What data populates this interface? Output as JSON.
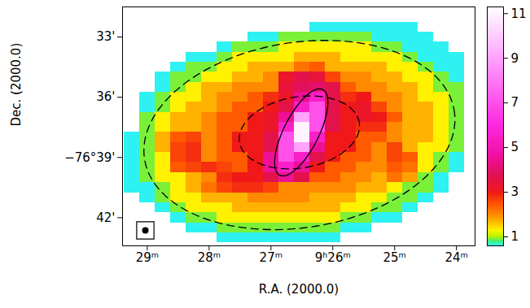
{
  "chart_data": {
    "type": "heatmap",
    "xlabel": "R.A. (2000.0)",
    "ylabel": "Dec. (2000.0)",
    "xlim": [
      29.4,
      23.7
    ],
    "ylim": [
      43.4,
      31.5
    ],
    "xticks": [
      {
        "value": 29,
        "label": "29ᵐ"
      },
      {
        "value": 28,
        "label": "28ᵐ"
      },
      {
        "value": 27,
        "label": "27ᵐ"
      },
      {
        "value": 26,
        "label": "9ʰ26ᵐ"
      },
      {
        "value": 25,
        "label": "25ᵐ"
      },
      {
        "value": 24,
        "label": "24ᵐ"
      }
    ],
    "yticks": [
      {
        "value": 33,
        "label": "33'"
      },
      {
        "value": 36,
        "label": "36'"
      },
      {
        "value": 39,
        "label": "−76°39'"
      },
      {
        "value": 42,
        "label": "42'"
      }
    ],
    "x": [
      29.25,
      29.0,
      28.75,
      28.5,
      28.25,
      28.0,
      27.75,
      27.5,
      27.25,
      27.0,
      26.75,
      26.5,
      26.25,
      26.0,
      25.75,
      25.5,
      25.25,
      25.0,
      24.75,
      24.5,
      24.25,
      24.0
    ],
    "y": [
      32.5,
      33,
      33.5,
      34,
      34.5,
      35,
      35.5,
      36,
      36.5,
      37,
      37.5,
      38,
      38.5,
      39,
      39.5,
      40,
      40.5,
      41,
      41.5,
      42,
      42.5,
      43
    ],
    "values": [
      [
        null,
        null,
        null,
        null,
        null,
        null,
        null,
        null,
        null,
        null,
        null,
        null,
        0.6,
        0.6,
        0.6,
        0.6,
        0.6,
        0.6,
        0.6,
        null,
        null,
        null
      ],
      [
        null,
        null,
        null,
        null,
        null,
        null,
        null,
        null,
        0.6,
        0.6,
        0.9,
        0.9,
        0.9,
        0.9,
        0.9,
        0.9,
        0.6,
        0.6,
        0.6,
        0.6,
        null,
        null
      ],
      [
        null,
        null,
        null,
        null,
        null,
        null,
        0.6,
        0.9,
        0.9,
        0.9,
        1.3,
        1.3,
        1.3,
        1.3,
        1.3,
        1.3,
        0.9,
        0.9,
        0.6,
        0.6,
        0.6,
        null
      ],
      [
        null,
        null,
        null,
        null,
        0.6,
        0.6,
        0.9,
        1.3,
        1.3,
        1.3,
        1.3,
        1.7,
        1.7,
        1.7,
        1.3,
        1.3,
        1.3,
        1.3,
        0.9,
        0.6,
        0.6,
        0.6
      ],
      [
        null,
        null,
        null,
        0.6,
        0.9,
        0.9,
        1.3,
        1.3,
        1.7,
        1.7,
        1.7,
        2.2,
        2.4,
        1.7,
        1.7,
        1.7,
        1.7,
        1.3,
        1.3,
        0.9,
        0.6,
        0.6
      ],
      [
        null,
        null,
        0.6,
        0.9,
        0.9,
        1.3,
        1.3,
        1.7,
        1.7,
        2.0,
        3.2,
        3.6,
        3.4,
        2.6,
        2.0,
        2.0,
        1.7,
        1.7,
        1.3,
        1.3,
        0.9,
        0.6
      ],
      [
        null,
        null,
        0.6,
        0.9,
        1.3,
        1.7,
        1.7,
        2.0,
        2.0,
        2.0,
        3.4,
        3.8,
        4.0,
        3.6,
        2.4,
        2.0,
        2.0,
        1.7,
        1.7,
        1.3,
        0.9,
        0.9
      ],
      [
        null,
        0.6,
        0.9,
        1.3,
        1.3,
        1.7,
        2.0,
        2.0,
        2.4,
        2.8,
        3.2,
        4.5,
        5.5,
        3.6,
        2.8,
        3.0,
        2.0,
        2.0,
        1.7,
        1.3,
        1.3,
        0.9
      ],
      [
        null,
        0.6,
        0.9,
        1.3,
        1.7,
        1.7,
        2.0,
        2.4,
        2.4,
        3.0,
        3.6,
        5.5,
        7,
        3.6,
        3.0,
        3.2,
        2.6,
        2.0,
        1.7,
        1.7,
        1.3,
        0.9
      ],
      [
        null,
        0.9,
        1.3,
        1.7,
        1.7,
        2.0,
        2.4,
        2.4,
        3.0,
        3.2,
        4.5,
        9,
        7,
        3.6,
        3.0,
        3.2,
        3.0,
        2.4,
        1.7,
        1.7,
        1.3,
        0.9
      ],
      [
        null,
        0.9,
        1.3,
        1.7,
        1.7,
        2.0,
        2.4,
        2.4,
        3.0,
        3.2,
        5.5,
        11,
        7,
        3.6,
        3.0,
        2.8,
        2.8,
        2.0,
        1.7,
        1.7,
        1.3,
        0.9
      ],
      [
        0.6,
        0.9,
        1.7,
        2.4,
        2.6,
        2.0,
        2.4,
        3.0,
        3.0,
        3.6,
        7,
        11,
        5.5,
        3.0,
        3.0,
        2.4,
        2.4,
        2.0,
        1.7,
        1.7,
        1.3,
        0.9
      ],
      [
        0.6,
        0.9,
        1.7,
        2.6,
        2.8,
        2.0,
        2.4,
        3.0,
        3.0,
        3.6,
        7,
        9,
        4.5,
        3.0,
        3.0,
        2.4,
        2.0,
        2.6,
        1.7,
        1.3,
        1.3,
        0.9
      ],
      [
        0.6,
        0.9,
        1.3,
        2.6,
        2.8,
        2.0,
        2.4,
        2.4,
        3.0,
        4.5,
        7,
        5.5,
        3.6,
        3.0,
        2.4,
        2.4,
        2.0,
        2.6,
        2.4,
        1.3,
        0.9,
        0.6
      ],
      [
        0.6,
        0.9,
        1.3,
        2.4,
        2.6,
        2.8,
        2.6,
        2.4,
        3.0,
        4.5,
        5.5,
        4.5,
        3.0,
        2.4,
        2.4,
        2.0,
        2.0,
        2.4,
        2.2,
        1.3,
        0.9,
        0.6
      ],
      [
        0.6,
        0.9,
        1.3,
        1.3,
        1.7,
        2.0,
        2.8,
        3.0,
        3.0,
        3.6,
        4.5,
        3.6,
        2.4,
        2.4,
        2.0,
        2.0,
        1.7,
        2.2,
        1.8,
        0.9,
        0.6,
        null
      ],
      [
        0.6,
        0.6,
        0.9,
        1.3,
        1.7,
        2.2,
        2.6,
        2.8,
        2.8,
        2.6,
        2.0,
        2.0,
        2.0,
        2.0,
        2.0,
        1.7,
        1.7,
        1.3,
        0.9,
        0.9,
        0.6,
        null
      ],
      [
        null,
        0.6,
        0.9,
        1.3,
        1.3,
        1.7,
        1.7,
        1.7,
        2.0,
        2.0,
        2.0,
        2.0,
        1.7,
        1.7,
        1.7,
        1.3,
        1.3,
        0.9,
        0.9,
        0.6,
        null,
        null
      ],
      [
        null,
        null,
        0.6,
        0.9,
        1.3,
        1.3,
        1.3,
        1.7,
        1.7,
        1.7,
        1.7,
        1.7,
        1.7,
        1.7,
        1.3,
        1.3,
        0.9,
        0.9,
        0.6,
        null,
        null,
        null
      ],
      [
        null,
        null,
        null,
        0.6,
        0.9,
        0.9,
        1.3,
        1.3,
        1.3,
        1.3,
        1.3,
        1.3,
        1.3,
        1.3,
        0.9,
        0.9,
        0.6,
        0.6,
        null,
        null,
        null,
        null
      ],
      [
        null,
        null,
        null,
        null,
        0.6,
        0.6,
        0.9,
        0.9,
        0.9,
        0.9,
        0.9,
        0.9,
        0.9,
        0.9,
        0.6,
        0.6,
        null,
        null,
        null,
        null,
        null,
        null
      ],
      [
        null,
        null,
        null,
        null,
        null,
        null,
        0.6,
        0.6,
        0.6,
        0.6,
        0.6,
        0.6,
        0.6,
        0.6,
        null,
        null,
        null,
        null,
        null,
        null,
        null,
        null
      ]
    ],
    "colorbar": {
      "range": [
        0.6,
        11.3
      ],
      "ticks": [
        1,
        3,
        5,
        7,
        9,
        11
      ]
    },
    "ellipses": [
      {
        "center": [
          26.54,
          37.88
        ],
        "major_end": [
          24.03,
          36.81
        ],
        "minor_end": [
          26.7,
          33.29
        ],
        "line_style": "dashed"
      },
      {
        "center": [
          26.54,
          37.75
        ],
        "major_end": [
          25.57,
          37.3
        ],
        "minor_end": [
          26.61,
          35.99
        ],
        "line_style": "dashed"
      },
      {
        "center": [
          26.51,
          37.75
        ],
        "major_end": [
          26.16,
          35.62
        ],
        "minor_end": [
          26.26,
          38.16
        ],
        "line_style": "solid"
      }
    ]
  }
}
